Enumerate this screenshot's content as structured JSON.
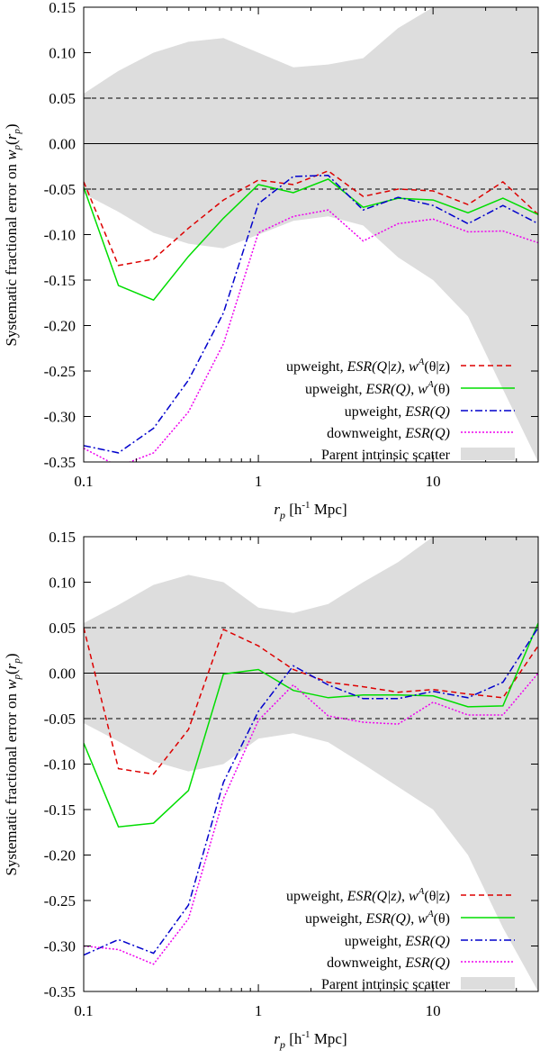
{
  "chart_data": [
    {
      "type": "line",
      "panel": "top",
      "xscale": "log",
      "xlim": [
        0.1,
        40
      ],
      "ylim": [
        -0.35,
        0.15
      ],
      "xticks": [
        {
          "value": 0.1,
          "label": "0.1"
        },
        {
          "value": 1,
          "label": "1"
        },
        {
          "value": 10,
          "label": "10"
        }
      ],
      "yticks": [
        {
          "value": 0.15,
          "label": "0.15"
        },
        {
          "value": 0.1,
          "label": "0.10"
        },
        {
          "value": 0.05,
          "label": "0.05"
        },
        {
          "value": 0.0,
          "label": "0.00"
        },
        {
          "value": -0.05,
          "label": "-0.05"
        },
        {
          "value": -0.1,
          "label": "-0.10"
        },
        {
          "value": -0.15,
          "label": "-0.15"
        },
        {
          "value": -0.2,
          "label": "-0.20"
        },
        {
          "value": -0.25,
          "label": "-0.25"
        },
        {
          "value": -0.3,
          "label": "-0.30"
        },
        {
          "value": -0.35,
          "label": "-0.35"
        }
      ],
      "xlabel_main": "r",
      "xlabel_sub": "p",
      "xlabel_units": "[h-1 Mpc]",
      "ylabel": "Systematic fractional error on wp(rp)",
      "reference_lines": [
        {
          "y": 0.05,
          "style": "dashed",
          "color": "#000000"
        },
        {
          "y": -0.05,
          "style": "dashed",
          "color": "#000000"
        },
        {
          "y": 0.0,
          "style": "solid",
          "color": "#000000"
        }
      ],
      "band": {
        "name": "Parent intrinsic scatter",
        "color": "#dddddd",
        "x": [
          0.1,
          0.158,
          0.251,
          0.398,
          0.631,
          1.0,
          1.585,
          2.512,
          3.981,
          6.31,
          10.0,
          15.85,
          25.12,
          40.0
        ],
        "upper": [
          0.055,
          0.08,
          0.1,
          0.112,
          0.116,
          0.1,
          0.084,
          0.087,
          0.094,
          0.127,
          0.15,
          0.15,
          0.15,
          0.15
        ],
        "lower": [
          -0.055,
          -0.075,
          -0.098,
          -0.11,
          -0.115,
          -0.1,
          -0.085,
          -0.08,
          -0.09,
          -0.125,
          -0.15,
          -0.19,
          -0.27,
          -0.35
        ]
      },
      "x": [
        0.1,
        0.158,
        0.251,
        0.398,
        0.631,
        1.0,
        1.585,
        2.512,
        3.981,
        6.31,
        10.0,
        15.85,
        25.12,
        40.0
      ],
      "series": [
        {
          "name": "upweight, ESR(Q|z), wA(θ|z)",
          "color": "#dd0000",
          "dash": "6,4",
          "values": [
            -0.042,
            -0.134,
            -0.127,
            -0.093,
            -0.062,
            -0.04,
            -0.045,
            -0.03,
            -0.058,
            -0.05,
            -0.052,
            -0.067,
            -0.042,
            -0.078
          ]
        },
        {
          "name": "upweight, ESR(Q), wA(θ)",
          "color": "#00dd00",
          "dash": "",
          "values": [
            -0.048,
            -0.156,
            -0.172,
            -0.124,
            -0.082,
            -0.045,
            -0.054,
            -0.039,
            -0.07,
            -0.06,
            -0.062,
            -0.076,
            -0.06,
            -0.078
          ]
        },
        {
          "name": "upweight, ESR(Q)",
          "color": "#0000cc",
          "dash": "8,3,2,3",
          "values": [
            -0.332,
            -0.34,
            -0.313,
            -0.26,
            -0.186,
            -0.066,
            -0.036,
            -0.035,
            -0.073,
            -0.059,
            -0.068,
            -0.088,
            -0.068,
            -0.088
          ]
        },
        {
          "name": "downweight, ESR(Q)",
          "color": "#ee00ee",
          "dash": "2,2",
          "values": [
            -0.335,
            -0.355,
            -0.34,
            -0.295,
            -0.22,
            -0.098,
            -0.08,
            -0.073,
            -0.107,
            -0.088,
            -0.083,
            -0.097,
            -0.096,
            -0.109
          ]
        }
      ]
    },
    {
      "type": "line",
      "panel": "bottom",
      "xscale": "log",
      "xlim": [
        0.1,
        40
      ],
      "ylim": [
        -0.35,
        0.15
      ],
      "xticks": [
        {
          "value": 0.1,
          "label": "0.1"
        },
        {
          "value": 1,
          "label": "1"
        },
        {
          "value": 10,
          "label": "10"
        }
      ],
      "yticks": [
        {
          "value": 0.15,
          "label": "0.15"
        },
        {
          "value": 0.1,
          "label": "0.10"
        },
        {
          "value": 0.05,
          "label": "0.05"
        },
        {
          "value": 0.0,
          "label": "0.00"
        },
        {
          "value": -0.05,
          "label": "-0.05"
        },
        {
          "value": -0.1,
          "label": "-0.10"
        },
        {
          "value": -0.15,
          "label": "-0.15"
        },
        {
          "value": -0.2,
          "label": "-0.20"
        },
        {
          "value": -0.25,
          "label": "-0.25"
        },
        {
          "value": -0.3,
          "label": "-0.30"
        },
        {
          "value": -0.35,
          "label": "-0.35"
        }
      ],
      "xlabel_main": "r",
      "xlabel_sub": "p",
      "xlabel_units": "[h-1 Mpc]",
      "ylabel": "Systematic fractional error on wp(rp)",
      "reference_lines": [
        {
          "y": 0.05,
          "style": "dashed",
          "color": "#000000"
        },
        {
          "y": -0.05,
          "style": "dashed",
          "color": "#000000"
        },
        {
          "y": 0.0,
          "style": "solid",
          "color": "#000000"
        }
      ],
      "band": {
        "name": "Parent intrinsic scatter",
        "color": "#dddddd",
        "x": [
          0.1,
          0.158,
          0.251,
          0.398,
          0.631,
          1.0,
          1.585,
          2.512,
          3.981,
          6.31,
          10.0,
          15.85,
          25.12,
          40.0
        ],
        "upper": [
          0.055,
          0.075,
          0.097,
          0.108,
          0.1,
          0.072,
          0.066,
          0.076,
          0.1,
          0.122,
          0.15,
          0.15,
          0.15,
          0.15
        ],
        "lower": [
          -0.055,
          -0.075,
          -0.097,
          -0.108,
          -0.1,
          -0.072,
          -0.066,
          -0.076,
          -0.1,
          -0.125,
          -0.15,
          -0.2,
          -0.28,
          -0.35
        ]
      },
      "x": [
        0.1,
        0.158,
        0.251,
        0.398,
        0.631,
        1.0,
        1.585,
        2.512,
        3.981,
        6.31,
        10.0,
        15.85,
        25.12,
        40.0
      ],
      "series": [
        {
          "name": "upweight, ESR(Q|z), wA(θ|z)",
          "color": "#dd0000",
          "dash": "6,4",
          "values": [
            0.05,
            -0.105,
            -0.111,
            -0.062,
            0.048,
            0.03,
            0.004,
            -0.01,
            -0.015,
            -0.021,
            -0.018,
            -0.023,
            -0.027,
            0.03
          ]
        },
        {
          "name": "upweight, ESR(Q), wA(θ)",
          "color": "#00dd00",
          "dash": "",
          "values": [
            -0.077,
            -0.169,
            -0.165,
            -0.129,
            -0.001,
            0.004,
            -0.019,
            -0.027,
            -0.024,
            -0.024,
            -0.025,
            -0.037,
            -0.036,
            0.055
          ]
        },
        {
          "name": "upweight, ESR(Q)",
          "color": "#0000cc",
          "dash": "8,3,2,3",
          "values": [
            -0.31,
            -0.293,
            -0.308,
            -0.255,
            -0.12,
            -0.042,
            0.008,
            -0.013,
            -0.028,
            -0.028,
            -0.02,
            -0.027,
            -0.01,
            0.05
          ]
        },
        {
          "name": "downweight, ESR(Q)",
          "color": "#ee00ee",
          "dash": "2,2",
          "values": [
            -0.3,
            -0.304,
            -0.32,
            -0.27,
            -0.138,
            -0.052,
            -0.013,
            -0.047,
            -0.054,
            -0.056,
            -0.032,
            -0.046,
            -0.046,
            0.0
          ]
        }
      ]
    }
  ]
}
